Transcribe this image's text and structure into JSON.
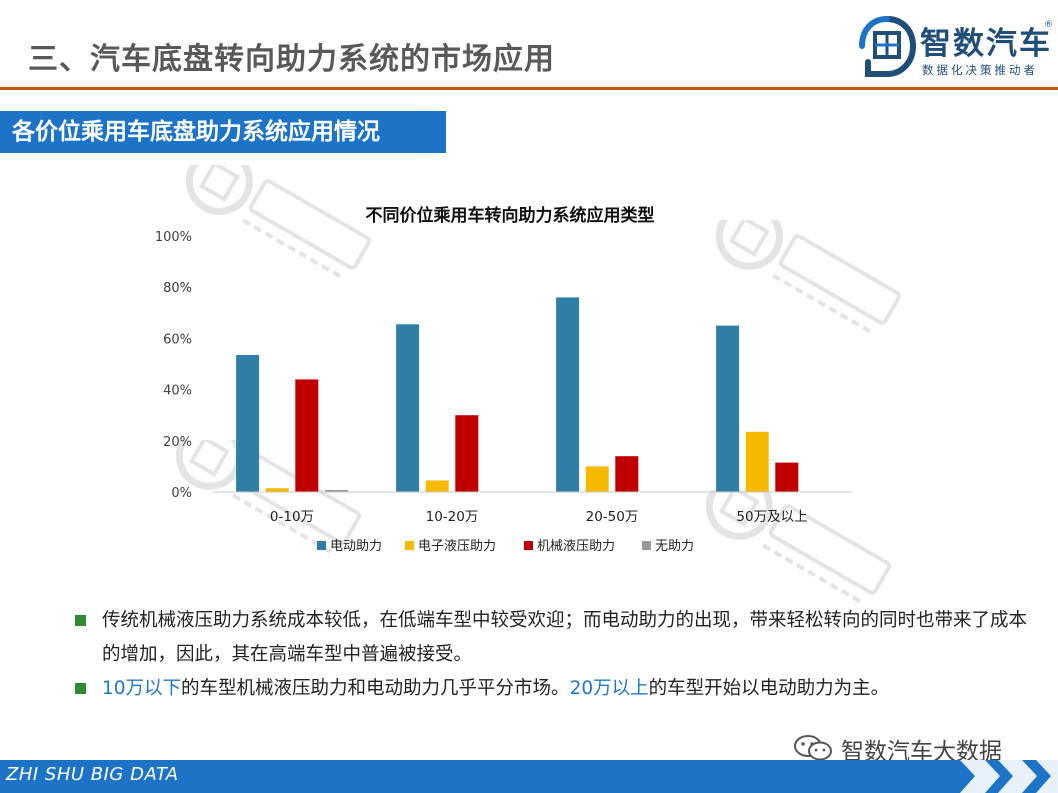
{
  "header": {
    "title": "三、汽车底盘转向助力系统的市场应用",
    "brand_name": "智数汽车",
    "brand_reg": "®",
    "brand_slogan": "数据化决策推动者"
  },
  "section": {
    "title": "各价位乘用车底盘助力系统应用情况"
  },
  "chart_data": {
    "type": "bar",
    "title": "不同价位乘用车转向助力系统应用类型",
    "categories": [
      "0-10万",
      "10-20万",
      "20-50万",
      "50万及以上"
    ],
    "series": [
      {
        "name": "电动助力",
        "color": "#2e7ea5",
        "values": [
          53.5,
          65.5,
          76,
          65
        ]
      },
      {
        "name": "电子液压助力",
        "color": "#f7b800",
        "values": [
          1.5,
          4.5,
          10,
          23.5
        ]
      },
      {
        "name": "机械液压助力",
        "color": "#c00000",
        "values": [
          44,
          30,
          14,
          11.5
        ]
      },
      {
        "name": "无助力",
        "color": "#999999",
        "values": [
          0.8,
          0,
          0,
          0
        ]
      }
    ],
    "y_ticks": [
      "0%",
      "20%",
      "40%",
      "60%",
      "80%",
      "100%"
    ],
    "ylim": [
      0,
      100
    ],
    "legend_position": "bottom",
    "grid": false
  },
  "bullets": [
    {
      "segments": [
        {
          "text": "传统机械液压助力系统成本较低，在低端车型中较受欢迎；而电动助力的出现，带来轻松转向的同时也带来了成本的增加，因此，其在高端车型中普遍被接受。",
          "hl": false
        }
      ]
    },
    {
      "segments": [
        {
          "text": "10万以下",
          "hl": true
        },
        {
          "text": "的车型机械液压助力和电动助力几乎平分市场。",
          "hl": false
        },
        {
          "text": "20万以上",
          "hl": true
        },
        {
          "text": "的车型开始以电动助力为主。",
          "hl": false
        }
      ]
    }
  ],
  "wechat": {
    "label": "智数汽车大数据"
  },
  "footer": {
    "text": "ZHI SHU BIG DATA"
  },
  "colors": {
    "accent_rule": "#c55a11",
    "banner": "#1d74c7",
    "footer": "#1d74c7",
    "bullet": "#2e8b32"
  }
}
